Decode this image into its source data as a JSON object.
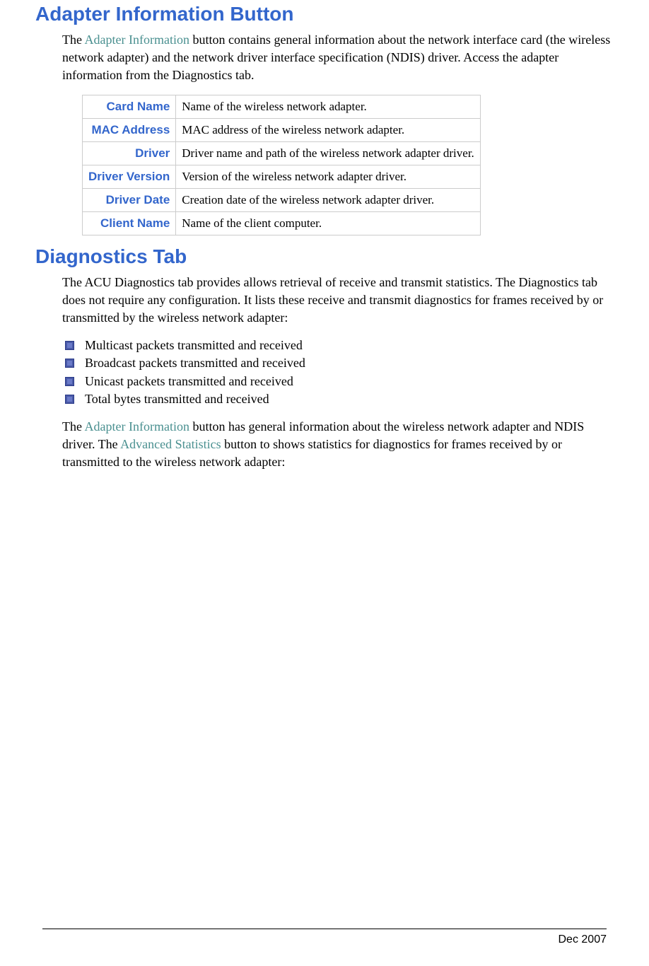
{
  "section1": {
    "heading": "Adapter Information Button",
    "intro_pre": "The ",
    "intro_link": "Adapter Information",
    "intro_post": " button contains general information about the network interface card (the wireless network adapter) and the network driver interface specification (NDIS) driver.  Access the adapter information from the Diagnostics tab.",
    "table": {
      "rows": [
        {
          "label": "Card Name",
          "desc": "Name of the wireless network adapter."
        },
        {
          "label": "MAC Address",
          "desc": "MAC address of the wireless network adapter."
        },
        {
          "label": "Driver",
          "desc": "Driver name and path of the wireless network adapter driver."
        },
        {
          "label": "Driver Version",
          "desc": "Version of the wireless network adapter driver."
        },
        {
          "label": "Driver Date",
          "desc": "Creation date of the wireless network adapter driver."
        },
        {
          "label": "Client Name",
          "desc": "Name of the client computer."
        }
      ]
    }
  },
  "section2": {
    "heading": "Diagnostics Tab",
    "intro": "The ACU Diagnostics tab provides allows retrieval of receive and transmit statistics. The Diagnostics tab does not require any configuration.  It lists these receive and transmit diagnostics for frames received by or transmitted by the wireless network adapter:",
    "bullets": [
      "Multicast packets transmitted and received",
      "Broadcast packets transmitted and received",
      "Unicast packets transmitted and received",
      "Total bytes transmitted and received"
    ],
    "closing_pre": "The ",
    "closing_link1": "Adapter Information",
    "closing_mid1": " button has general information about the wireless network adapter and NDIS driver.  The ",
    "closing_link2": "Advanced Statistics",
    "closing_post": " button to shows statistics for diagnostics for frames received by or transmitted to the wireless network adapter:"
  },
  "footer": {
    "date": "Dec 2007"
  },
  "colors": {
    "heading_blue": "#3366cc",
    "teal_link": "#4a9090",
    "border_gray": "#cccccc",
    "bullet_blue": "#4a5aa8"
  }
}
